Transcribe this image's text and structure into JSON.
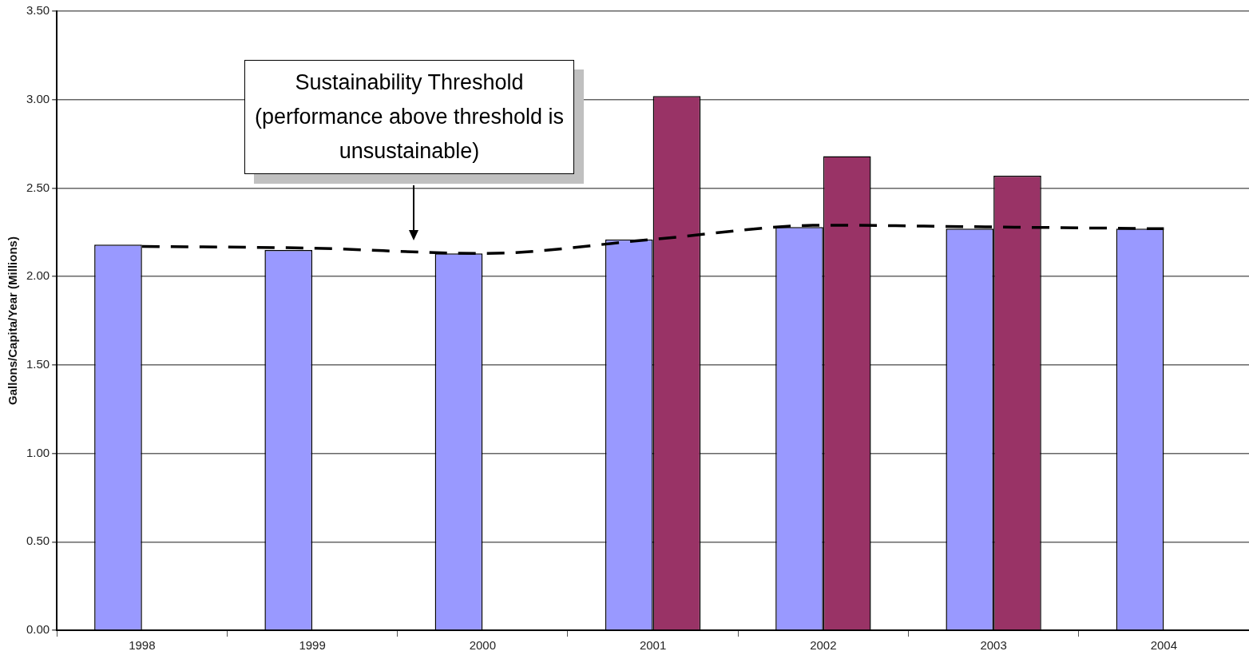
{
  "chart_data": {
    "type": "bar",
    "ylabel": "Gallons/Capita/Year (Millions)",
    "categories": [
      "1998",
      "1999",
      "2000",
      "2001",
      "2002",
      "2003",
      "2004"
    ],
    "series": [
      {
        "color": "#9999ff",
        "values": [
          2.18,
          2.15,
          2.13,
          2.21,
          2.28,
          2.27,
          2.27
        ]
      },
      {
        "color": "#993366",
        "values": [
          null,
          null,
          null,
          3.02,
          2.68,
          2.57,
          null
        ]
      },
      {
        "type": "line",
        "color": "#000000",
        "line_style": "dashed",
        "marker": "none",
        "values": [
          2.17,
          2.16,
          2.13,
          2.21,
          2.29,
          2.28,
          2.27
        ]
      }
    ],
    "ylim": [
      0,
      3.5
    ],
    "yticks": [
      {
        "value": 0,
        "label": "0.00"
      },
      {
        "value": 0.5,
        "label": "0.50"
      },
      {
        "value": 1,
        "label": "1.00"
      },
      {
        "value": 1.5,
        "label": "1.50"
      },
      {
        "value": 2,
        "label": "2.00"
      },
      {
        "value": 2.5,
        "label": "2.50"
      },
      {
        "value": 3,
        "label": "3.00"
      },
      {
        "value": 3.5,
        "label": "3.50"
      }
    ],
    "grid": "y",
    "legend": false,
    "annotations": [
      "Sustainability Threshold (performance above threshold is unsustainable)"
    ]
  }
}
